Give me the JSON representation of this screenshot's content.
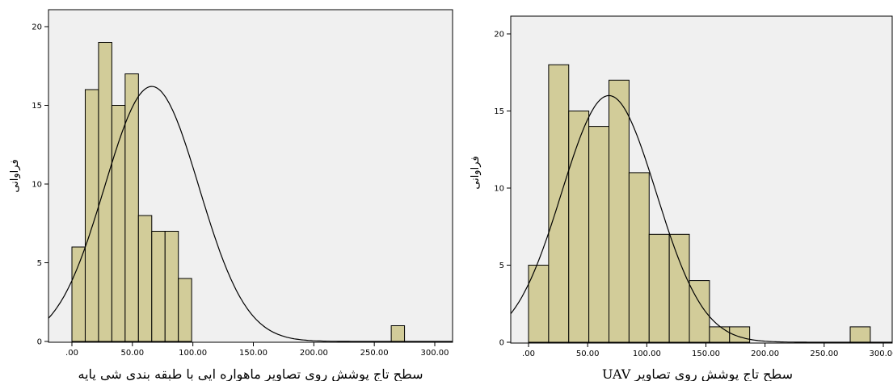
{
  "chart_data": [
    {
      "type": "bar",
      "subtype": "histogram-with-normal-curve",
      "title": "",
      "xlabel": "سطح تاج پوشش روی تصاویر ماهواره ایی با طبقه بندی شی پایه",
      "ylabel": "فراوانی",
      "x_ticks": [
        ".00",
        "50.00",
        "100.00",
        "150.00",
        "200.00",
        "250.00",
        "300.00"
      ],
      "y_ticks": [
        "0",
        "5",
        "10",
        "15",
        "20"
      ],
      "xlim": [
        -20,
        315
      ],
      "ylim": [
        0,
        21
      ],
      "bins": [
        {
          "from": 0,
          "to": 11,
          "count": 6
        },
        {
          "from": 11,
          "to": 22,
          "count": 16
        },
        {
          "from": 22,
          "to": 33,
          "count": 19
        },
        {
          "from": 33,
          "to": 44,
          "count": 15
        },
        {
          "from": 44,
          "to": 55,
          "count": 17
        },
        {
          "from": 55,
          "to": 66,
          "count": 8
        },
        {
          "from": 66,
          "to": 77,
          "count": 7
        },
        {
          "from": 77,
          "to": 88,
          "count": 7
        },
        {
          "from": 88,
          "to": 99,
          "count": 4
        },
        {
          "from": 264,
          "to": 275,
          "count": 1
        }
      ],
      "normal_curve": {
        "mean": 66,
        "sd": 39,
        "peak": 16.2
      },
      "colors": {
        "bar": "#d2cc99",
        "bar_edge": "#000000",
        "plot_bg": "#f0f0f0",
        "curve": "#000000"
      }
    },
    {
      "type": "bar",
      "subtype": "histogram-with-normal-curve",
      "title": "",
      "xlabel": "سطح تاج پوشش روی تصاویر UAV",
      "ylabel": "فراوانی",
      "x_ticks": [
        ".00",
        "50.00",
        "100.00",
        "150.00",
        "200.00",
        "250.00",
        "300.00"
      ],
      "y_ticks": [
        "0",
        "5",
        "10",
        "15",
        "20"
      ],
      "xlim": [
        -22,
        310
      ],
      "ylim": [
        0,
        21
      ],
      "bins": [
        {
          "from": 0,
          "to": 17,
          "count": 5
        },
        {
          "from": 17,
          "to": 34,
          "count": 18
        },
        {
          "from": 34,
          "to": 51,
          "count": 15
        },
        {
          "from": 51,
          "to": 68,
          "count": 14
        },
        {
          "from": 68,
          "to": 85,
          "count": 17
        },
        {
          "from": 85,
          "to": 102,
          "count": 11
        },
        {
          "from": 102,
          "to": 119,
          "count": 7
        },
        {
          "from": 119,
          "to": 136,
          "count": 7
        },
        {
          "from": 136,
          "to": 153,
          "count": 4
        },
        {
          "from": 153,
          "to": 170,
          "count": 1
        },
        {
          "from": 170,
          "to": 187,
          "count": 1
        },
        {
          "from": 272,
          "to": 289,
          "count": 1
        }
      ],
      "normal_curve": {
        "mean": 68,
        "sd": 40,
        "peak": 16.0
      },
      "colors": {
        "bar": "#d2cc99",
        "bar_edge": "#000000",
        "plot_bg": "#f0f0f0",
        "curve": "#000000"
      }
    }
  ]
}
